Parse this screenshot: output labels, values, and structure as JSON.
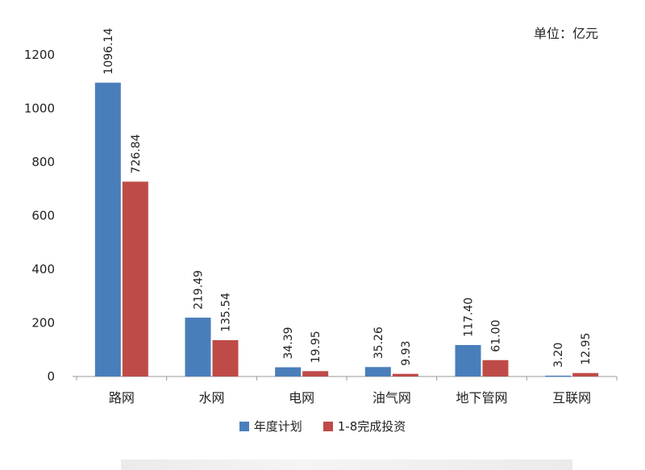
{
  "chart_data": {
    "type": "bar",
    "unit_label": "单位：亿元",
    "categories": [
      "路网",
      "水网",
      "电网",
      "油气网",
      "地下管网",
      "互联网"
    ],
    "series": [
      {
        "name": "年度计划",
        "color": "#4a7ebb",
        "values": [
          1096.14,
          219.49,
          34.39,
          35.26,
          117.4,
          3.2
        ],
        "labels": [
          "1096.14",
          "219.49",
          "34.39",
          "35.26",
          "117.40",
          "3.20"
        ]
      },
      {
        "name": "1-8完成投资",
        "color": "#be4b48",
        "values": [
          726.84,
          135.54,
          19.95,
          9.93,
          61.0,
          12.95
        ],
        "labels": [
          "726.84",
          "135.54",
          "19.95",
          "9.93",
          "61.00",
          "12.95"
        ]
      }
    ],
    "ylim": [
      0,
      1200
    ],
    "yticks": [
      "0",
      "200",
      "400",
      "600",
      "800",
      "1000",
      "1200"
    ],
    "grid": false,
    "legend": "bottom"
  }
}
